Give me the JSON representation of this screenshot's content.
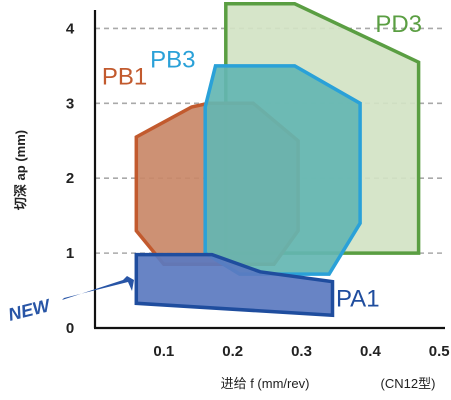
{
  "chart_data": {
    "type": "area",
    "xlabel": "进给 f (mm/rev)",
    "ylabel": "切深 ap (mm)",
    "note": "(CN12型)",
    "x_ticks": [
      "0.1",
      "0.2",
      "0.3",
      "0.4",
      "0.5"
    ],
    "x_tick_values": [
      0.1,
      0.2,
      0.3,
      0.4,
      0.5
    ],
    "y_ticks": [
      "0",
      "1",
      "2",
      "3",
      "4"
    ],
    "y_tick_values": [
      0,
      1,
      2,
      3,
      4
    ],
    "xlim": [
      0.0,
      0.52
    ],
    "ylim": [
      0,
      4.3
    ],
    "grid": "horizontal dashed at 1, 2, 3, 4",
    "badge": "NEW",
    "series": [
      {
        "name": "PD3",
        "color": "#5a9e42",
        "fill": "#d3e3c4",
        "points": [
          [
            0.19,
            4.33
          ],
          [
            0.29,
            4.33
          ],
          [
            0.47,
            3.55
          ],
          [
            0.47,
            1.0
          ],
          [
            0.19,
            1.0
          ]
        ]
      },
      {
        "name": "PB1",
        "color": "#c25a2e",
        "fill": "#c98868",
        "points": [
          [
            0.14,
            2.95
          ],
          [
            0.165,
            3.0
          ],
          [
            0.23,
            3.0
          ],
          [
            0.295,
            2.5
          ],
          [
            0.295,
            1.3
          ],
          [
            0.26,
            0.85
          ],
          [
            0.1,
            0.85
          ],
          [
            0.06,
            1.3
          ],
          [
            0.06,
            2.55
          ]
        ]
      },
      {
        "name": "PB3",
        "color": "#2aa1d8",
        "fill": "#64b6b2",
        "points": [
          [
            0.175,
            3.5
          ],
          [
            0.29,
            3.5
          ],
          [
            0.385,
            3.0
          ],
          [
            0.385,
            1.4
          ],
          [
            0.34,
            0.72
          ],
          [
            0.21,
            0.72
          ],
          [
            0.16,
            1.0
          ],
          [
            0.16,
            2.95
          ]
        ]
      },
      {
        "name": "PA1",
        "color": "#1f4d9e",
        "fill": "#5b79c0",
        "points": [
          [
            0.06,
            0.98
          ],
          [
            0.17,
            0.98
          ],
          [
            0.24,
            0.75
          ],
          [
            0.345,
            0.62
          ],
          [
            0.345,
            0.17
          ],
          [
            0.06,
            0.33
          ]
        ]
      }
    ]
  }
}
